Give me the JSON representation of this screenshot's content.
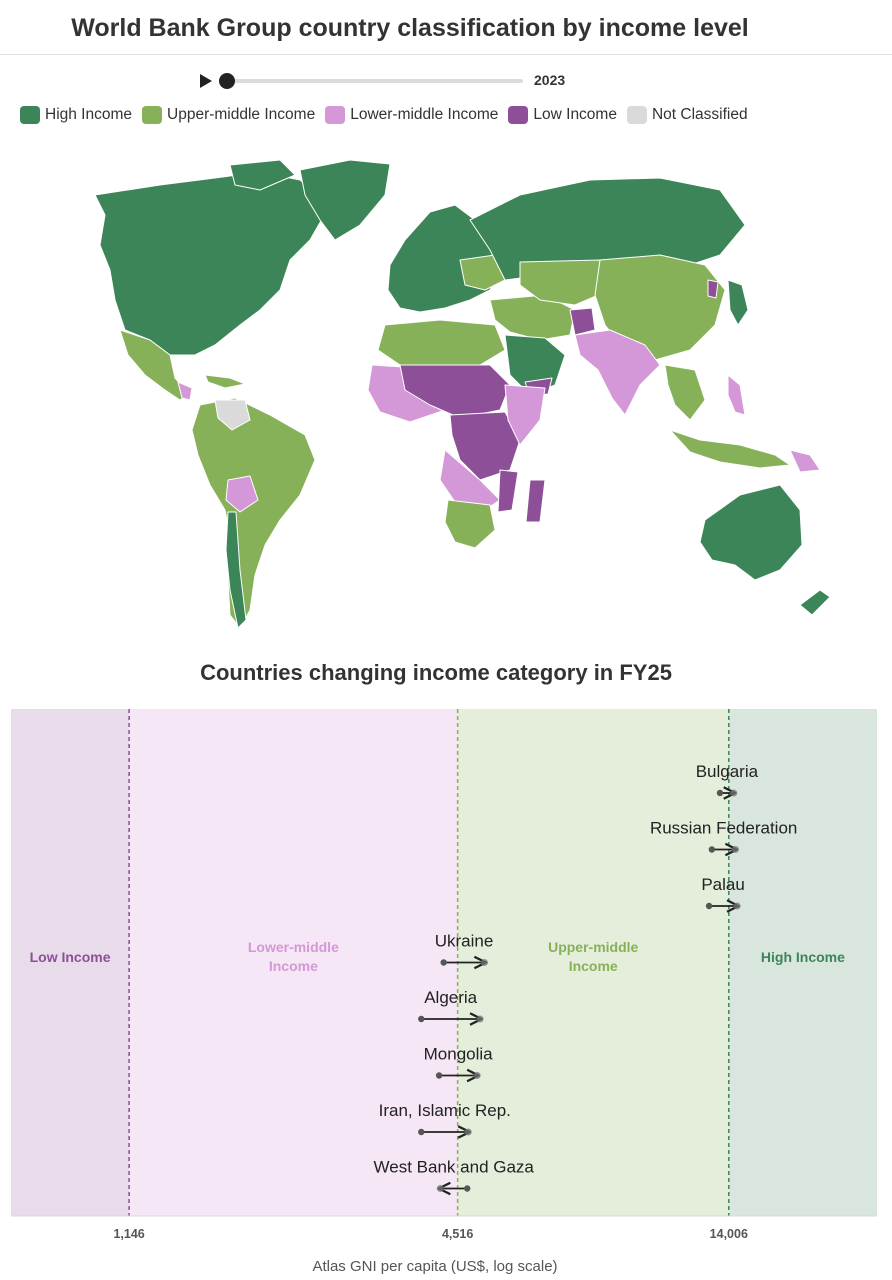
{
  "title": "World Bank Group country classification by income level",
  "timeline": {
    "year": "2023",
    "play_icon": "play-icon"
  },
  "legend": [
    {
      "label": "High Income",
      "color": "#3b8558"
    },
    {
      "label": "Upper-middle Income",
      "color": "#86b159"
    },
    {
      "label": "Lower-middle Income",
      "color": "#d497d7"
    },
    {
      "label": "Low Income",
      "color": "#8d4f98"
    },
    {
      "label": "Not Classified",
      "color": "#dadada"
    }
  ],
  "chart_data": {
    "type": "scatter",
    "title": "Countries changing income category in FY25",
    "xlabel": "Atlas GNI per capita (US$, log scale)",
    "x_scale": "log",
    "xlim": [
      700,
      26000
    ],
    "thresholds": [
      1146,
      4516,
      14006
    ],
    "tick_labels": [
      "1,146",
      "4,516",
      "14,006"
    ],
    "bands": [
      {
        "label": "Low Income",
        "color": "#8d4f98",
        "bg": "#e8dbea"
      },
      {
        "label": "Lower-middle Income",
        "color": "#d497d7",
        "bg": "#f5e7f6"
      },
      {
        "label": "Upper-middle Income",
        "color": "#86b159",
        "bg": "#e5eedb"
      },
      {
        "label": "High Income",
        "color": "#3b8558",
        "bg": "#d9e6de"
      }
    ],
    "changes": [
      {
        "country": "Bulgaria",
        "from": 13500,
        "to": 14300
      },
      {
        "country": "Russian Federation",
        "from": 13050,
        "to": 14400
      },
      {
        "country": "Palau",
        "from": 12900,
        "to": 14500
      },
      {
        "country": "Ukraine",
        "from": 4260,
        "to": 5050
      },
      {
        "country": "Algeria",
        "from": 3880,
        "to": 4960
      },
      {
        "country": "Mongolia",
        "from": 4180,
        "to": 4900
      },
      {
        "country": "Iran, Islamic Rep.",
        "from": 3880,
        "to": 4720
      },
      {
        "country": "West Bank and Gaza",
        "from": 4700,
        "to": 4200
      }
    ]
  }
}
